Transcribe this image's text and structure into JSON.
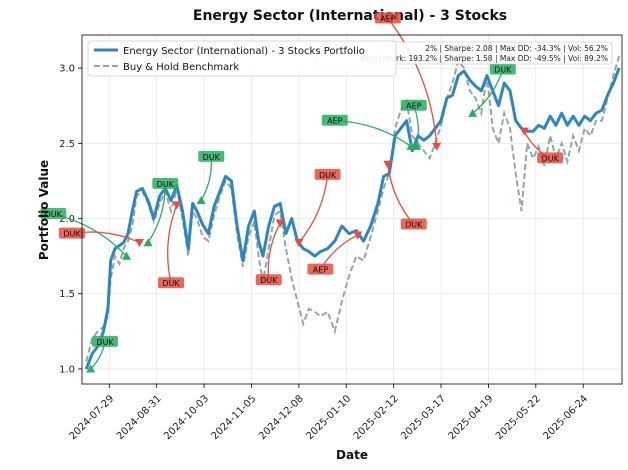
{
  "chart_data": {
    "type": "line",
    "title": "Energy Sector (International) - 3 Stocks",
    "xlabel": "Date",
    "ylabel": "Portfolio Value",
    "ylim": [
      0.9,
      3.22
    ],
    "yticks": [
      1.0,
      1.5,
      2.0,
      2.5,
      3.0
    ],
    "ytick_labels": [
      "1.0",
      "1.5",
      "2.0",
      "2.5",
      "3.0"
    ],
    "xticks": [
      "2024-07-29",
      "2024-08-31",
      "2024-10-03",
      "2024-11-05",
      "2024-12-08",
      "2025-01-10",
      "2025-02-12",
      "2025-03-17",
      "2025-04-19",
      "2025-05-22",
      "2025-06-24"
    ],
    "grid": true,
    "legend_position": "top-left",
    "colors": {
      "portfolio": "#2e86c1",
      "benchmark": "#95a5a6",
      "buy": "#27ae60",
      "sell": "#e74c3c"
    },
    "series": [
      {
        "name": "Energy Sector (International) - 3 Stocks Portfolio",
        "points": [
          [
            "2024-07-13",
            1.0
          ],
          [
            "2024-07-17",
            1.1
          ],
          [
            "2024-07-21",
            1.15
          ],
          [
            "2024-07-25",
            1.25
          ],
          [
            "2024-07-28",
            1.4
          ],
          [
            "2024-07-30",
            1.72
          ],
          [
            "2024-08-02",
            1.8
          ],
          [
            "2024-08-05",
            1.82
          ],
          [
            "2024-08-08",
            1.84
          ],
          [
            "2024-08-11",
            1.9
          ],
          [
            "2024-08-14",
            2.05
          ],
          [
            "2024-08-17",
            2.18
          ],
          [
            "2024-08-21",
            2.2
          ],
          [
            "2024-08-25",
            2.12
          ],
          [
            "2024-08-29",
            2.0
          ],
          [
            "2024-09-02",
            2.15
          ],
          [
            "2024-09-06",
            2.2
          ],
          [
            "2024-09-10",
            2.12
          ],
          [
            "2024-09-14",
            2.22
          ],
          [
            "2024-09-18",
            2.05
          ],
          [
            "2024-09-22",
            1.8
          ],
          [
            "2024-09-25",
            2.1
          ],
          [
            "2024-09-28",
            2.05
          ],
          [
            "2024-10-02",
            1.96
          ],
          [
            "2024-10-06",
            1.9
          ],
          [
            "2024-10-10",
            2.08
          ],
          [
            "2024-10-14",
            2.18
          ],
          [
            "2024-10-18",
            2.28
          ],
          [
            "2024-10-22",
            2.25
          ],
          [
            "2024-10-26",
            1.95
          ],
          [
            "2024-10-30",
            1.72
          ],
          [
            "2024-11-03",
            1.95
          ],
          [
            "2024-11-07",
            2.05
          ],
          [
            "2024-11-10",
            1.85
          ],
          [
            "2024-11-13",
            1.75
          ],
          [
            "2024-11-17",
            1.95
          ],
          [
            "2024-11-21",
            2.08
          ],
          [
            "2024-11-25",
            2.1
          ],
          [
            "2024-11-29",
            1.9
          ],
          [
            "2024-12-03",
            2.0
          ],
          [
            "2024-12-07",
            1.85
          ],
          [
            "2024-12-11",
            1.8
          ],
          [
            "2024-12-15",
            1.78
          ],
          [
            "2024-12-19",
            1.75
          ],
          [
            "2024-12-23",
            1.78
          ],
          [
            "2024-12-28",
            1.8
          ],
          [
            "2025-01-02",
            1.85
          ],
          [
            "2025-01-07",
            1.95
          ],
          [
            "2025-01-12",
            1.9
          ],
          [
            "2025-01-17",
            1.92
          ],
          [
            "2025-01-22",
            1.85
          ],
          [
            "2025-01-27",
            1.95
          ],
          [
            "2025-02-01",
            2.1
          ],
          [
            "2025-02-05",
            2.28
          ],
          [
            "2025-02-09",
            2.3
          ],
          [
            "2025-02-13",
            2.55
          ],
          [
            "2025-02-17",
            2.6
          ],
          [
            "2025-02-21",
            2.65
          ],
          [
            "2025-02-25",
            2.45
          ],
          [
            "2025-03-01",
            2.55
          ],
          [
            "2025-03-05",
            2.52
          ],
          [
            "2025-03-09",
            2.55
          ],
          [
            "2025-03-13",
            2.6
          ],
          [
            "2025-03-17",
            2.65
          ],
          [
            "2025-03-21",
            2.8
          ],
          [
            "2025-03-25",
            2.82
          ],
          [
            "2025-03-29",
            2.95
          ],
          [
            "2025-04-02",
            2.98
          ],
          [
            "2025-04-06",
            2.92
          ],
          [
            "2025-04-10",
            2.88
          ],
          [
            "2025-04-14",
            2.85
          ],
          [
            "2025-04-18",
            2.95
          ],
          [
            "2025-04-22",
            2.85
          ],
          [
            "2025-04-26",
            2.75
          ],
          [
            "2025-04-30",
            2.9
          ],
          [
            "2025-05-04",
            2.85
          ],
          [
            "2025-05-08",
            2.65
          ],
          [
            "2025-05-12",
            2.6
          ],
          [
            "2025-05-16",
            2.58
          ],
          [
            "2025-05-20",
            2.58
          ],
          [
            "2025-05-24",
            2.62
          ],
          [
            "2025-05-28",
            2.6
          ],
          [
            "2025-06-01",
            2.68
          ],
          [
            "2025-06-05",
            2.62
          ],
          [
            "2025-06-09",
            2.7
          ],
          [
            "2025-06-13",
            2.62
          ],
          [
            "2025-06-17",
            2.68
          ],
          [
            "2025-06-21",
            2.62
          ],
          [
            "2025-06-25",
            2.68
          ],
          [
            "2025-06-29",
            2.65
          ],
          [
            "2025-07-03",
            2.7
          ],
          [
            "2025-07-07",
            2.72
          ],
          [
            "2025-07-11",
            2.82
          ],
          [
            "2025-07-15",
            2.9
          ],
          [
            "2025-07-19",
            3.0
          ]
        ]
      },
      {
        "name": "Buy & Hold Benchmark",
        "points": [
          [
            "2024-07-13",
            1.05
          ],
          [
            "2024-07-17",
            1.2
          ],
          [
            "2024-07-21",
            1.25
          ],
          [
            "2024-07-25",
            1.28
          ],
          [
            "2024-07-28",
            1.35
          ],
          [
            "2024-07-30",
            1.6
          ],
          [
            "2024-08-02",
            1.75
          ],
          [
            "2024-08-05",
            1.7
          ],
          [
            "2024-08-08",
            1.8
          ],
          [
            "2024-08-11",
            1.85
          ],
          [
            "2024-08-14",
            1.95
          ],
          [
            "2024-08-17",
            2.15
          ],
          [
            "2024-08-21",
            2.18
          ],
          [
            "2024-08-25",
            2.1
          ],
          [
            "2024-08-29",
            1.98
          ],
          [
            "2024-09-02",
            2.1
          ],
          [
            "2024-09-06",
            2.18
          ],
          [
            "2024-09-10",
            2.05
          ],
          [
            "2024-09-14",
            2.2
          ],
          [
            "2024-09-18",
            2.0
          ],
          [
            "2024-09-22",
            1.75
          ],
          [
            "2024-09-25",
            2.05
          ],
          [
            "2024-09-28",
            2.0
          ],
          [
            "2024-10-02",
            1.88
          ],
          [
            "2024-10-06",
            1.85
          ],
          [
            "2024-10-10",
            2.02
          ],
          [
            "2024-10-14",
            2.15
          ],
          [
            "2024-10-18",
            2.25
          ],
          [
            "2024-10-22",
            2.2
          ],
          [
            "2024-10-26",
            1.9
          ],
          [
            "2024-10-30",
            1.68
          ],
          [
            "2024-11-03",
            1.88
          ],
          [
            "2024-11-07",
            1.98
          ],
          [
            "2024-11-10",
            1.75
          ],
          [
            "2024-11-13",
            1.58
          ],
          [
            "2024-11-17",
            1.8
          ],
          [
            "2024-11-21",
            2.02
          ],
          [
            "2024-11-25",
            2.05
          ],
          [
            "2024-11-29",
            1.8
          ],
          [
            "2024-12-03",
            1.6
          ],
          [
            "2024-12-07",
            1.45
          ],
          [
            "2024-12-11",
            1.3
          ],
          [
            "2024-12-15",
            1.4
          ],
          [
            "2024-12-19",
            1.38
          ],
          [
            "2024-12-23",
            1.35
          ],
          [
            "2024-12-28",
            1.38
          ],
          [
            "2025-01-02",
            1.25
          ],
          [
            "2025-01-07",
            1.45
          ],
          [
            "2025-01-12",
            1.62
          ],
          [
            "2025-01-17",
            1.75
          ],
          [
            "2025-01-22",
            1.72
          ],
          [
            "2025-01-27",
            1.88
          ],
          [
            "2025-02-01",
            2.05
          ],
          [
            "2025-02-05",
            2.2
          ],
          [
            "2025-02-09",
            2.3
          ],
          [
            "2025-02-13",
            2.6
          ],
          [
            "2025-02-17",
            2.72
          ],
          [
            "2025-02-21",
            2.78
          ],
          [
            "2025-02-25",
            2.55
          ],
          [
            "2025-03-01",
            2.5
          ],
          [
            "2025-03-05",
            2.45
          ],
          [
            "2025-03-09",
            2.4
          ],
          [
            "2025-03-13",
            2.5
          ],
          [
            "2025-03-17",
            2.62
          ],
          [
            "2025-03-21",
            2.8
          ],
          [
            "2025-03-25",
            2.9
          ],
          [
            "2025-03-29",
            3.05
          ],
          [
            "2025-04-02",
            3.0
          ],
          [
            "2025-04-06",
            2.85
          ],
          [
            "2025-04-10",
            2.8
          ],
          [
            "2025-04-14",
            2.7
          ],
          [
            "2025-04-18",
            2.95
          ],
          [
            "2025-04-22",
            2.6
          ],
          [
            "2025-04-26",
            2.5
          ],
          [
            "2025-04-30",
            2.7
          ],
          [
            "2025-05-04",
            2.6
          ],
          [
            "2025-05-08",
            2.3
          ],
          [
            "2025-05-12",
            2.05
          ],
          [
            "2025-05-16",
            2.5
          ],
          [
            "2025-05-20",
            2.4
          ],
          [
            "2025-05-24",
            2.48
          ],
          [
            "2025-05-28",
            2.35
          ],
          [
            "2025-06-01",
            2.55
          ],
          [
            "2025-06-05",
            2.4
          ],
          [
            "2025-06-09",
            2.5
          ],
          [
            "2025-06-13",
            2.38
          ],
          [
            "2025-06-17",
            2.55
          ],
          [
            "2025-06-21",
            2.45
          ],
          [
            "2025-06-25",
            2.6
          ],
          [
            "2025-06-29",
            2.55
          ],
          [
            "2025-07-03",
            2.65
          ],
          [
            "2025-07-07",
            2.65
          ],
          [
            "2025-07-11",
            2.8
          ],
          [
            "2025-07-15",
            2.95
          ],
          [
            "2025-07-19",
            3.08
          ]
        ]
      }
    ],
    "stats": [
      "2% | Sharpe: 2.08 | Max DD: -34.3% | Vol: 56.2%",
      "Benchmark: 193.2% | Sharpe: 1.58 | Max DD: -49.5% | Vol: 89.2%"
    ],
    "trades": [
      {
        "type": "buy",
        "label": "DUK",
        "date": "2024-07-16",
        "value": 1.0,
        "label_date": "2024-07-26",
        "label_value": 1.18
      },
      {
        "type": "buy",
        "label": "DUK",
        "date": "2024-08-10",
        "value": 1.75,
        "label_date": "2024-06-20",
        "label_value": 2.03
      },
      {
        "type": "sell",
        "label": "DUK",
        "date": "2024-08-19",
        "value": 1.84,
        "label_date": "2024-07-03",
        "label_value": 1.9
      },
      {
        "type": "buy",
        "label": "DUK",
        "date": "2024-08-25",
        "value": 1.84,
        "label_date": "2024-09-06",
        "label_value": 2.23
      },
      {
        "type": "sell",
        "label": "DUK",
        "date": "2024-09-14",
        "value": 2.09,
        "label_date": "2024-09-10",
        "label_value": 1.57
      },
      {
        "type": "buy",
        "label": "DUK",
        "date": "2024-10-01",
        "value": 2.12,
        "label_date": "2024-10-08",
        "label_value": 2.41
      },
      {
        "type": "sell",
        "label": "DUK",
        "date": "2024-11-25",
        "value": 1.97,
        "label_date": "2024-11-17",
        "label_value": 1.59
      },
      {
        "type": "sell",
        "label": "DUK",
        "date": "2024-12-08",
        "value": 1.84,
        "label_date": "2024-12-28",
        "label_value": 2.29
      },
      {
        "type": "sell",
        "label": "AEP",
        "date": "2025-01-18",
        "value": 1.89,
        "label_date": "2024-12-23",
        "label_value": 1.66
      },
      {
        "type": "sell",
        "label": "DUK",
        "date": "2025-02-08",
        "value": 2.36,
        "label_date": "2025-02-26",
        "label_value": 1.96
      },
      {
        "type": "buy",
        "label": "AEP",
        "date": "2025-02-24",
        "value": 2.48,
        "label_date": "2025-01-02",
        "label_value": 2.65
      },
      {
        "type": "buy",
        "label": "AEP",
        "date": "2025-02-28",
        "value": 2.48,
        "label_date": "2025-02-26",
        "label_value": 2.75
      },
      {
        "type": "sell",
        "label": "AEP",
        "date": "2025-03-14",
        "value": 2.48,
        "label_date": "2025-02-08",
        "label_value": 3.33
      },
      {
        "type": "buy",
        "label": "DUK",
        "date": "2025-04-08",
        "value": 2.7,
        "label_date": "2025-04-29",
        "label_value": 2.99
      },
      {
        "type": "sell",
        "label": "DUK",
        "date": "2025-05-14",
        "value": 2.58,
        "label_date": "2025-06-01",
        "label_value": 2.4
      }
    ]
  }
}
